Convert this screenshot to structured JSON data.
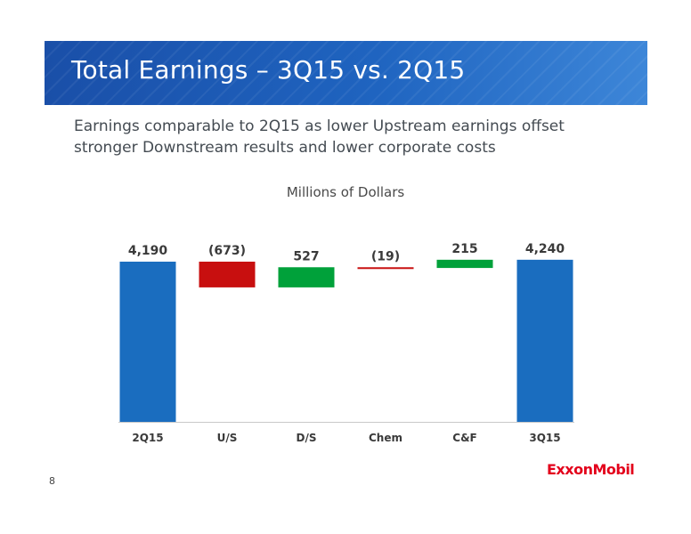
{
  "slide": {
    "title": "Total Earnings – 3Q15 vs. 2Q15",
    "subtitle": "Earnings comparable to 2Q15 as lower Upstream earnings offset stronger Downstream results and lower corporate costs",
    "page_number": "8",
    "logo_text": "ExxonMobil"
  },
  "colors": {
    "total": "#1a6dbf",
    "increase": "#00a13a",
    "decrease": "#c80f0f",
    "banner": "#1f5fbf"
  },
  "chart_data": {
    "type": "bar",
    "subtype": "waterfall",
    "title": "Millions of Dollars",
    "categories": [
      "2Q15",
      "U/S",
      "D/S",
      "Chem",
      "C&F",
      "3Q15"
    ],
    "values": [
      4190,
      -673,
      527,
      -19,
      215,
      4240
    ],
    "kinds": [
      "total",
      "delta",
      "delta",
      "delta",
      "delta",
      "total"
    ],
    "data_labels": [
      "4,190",
      "(673)",
      "527",
      "(19)",
      "215",
      "4,240"
    ],
    "xlabel": "",
    "ylabel": "",
    "grid": false,
    "legend": "none"
  }
}
